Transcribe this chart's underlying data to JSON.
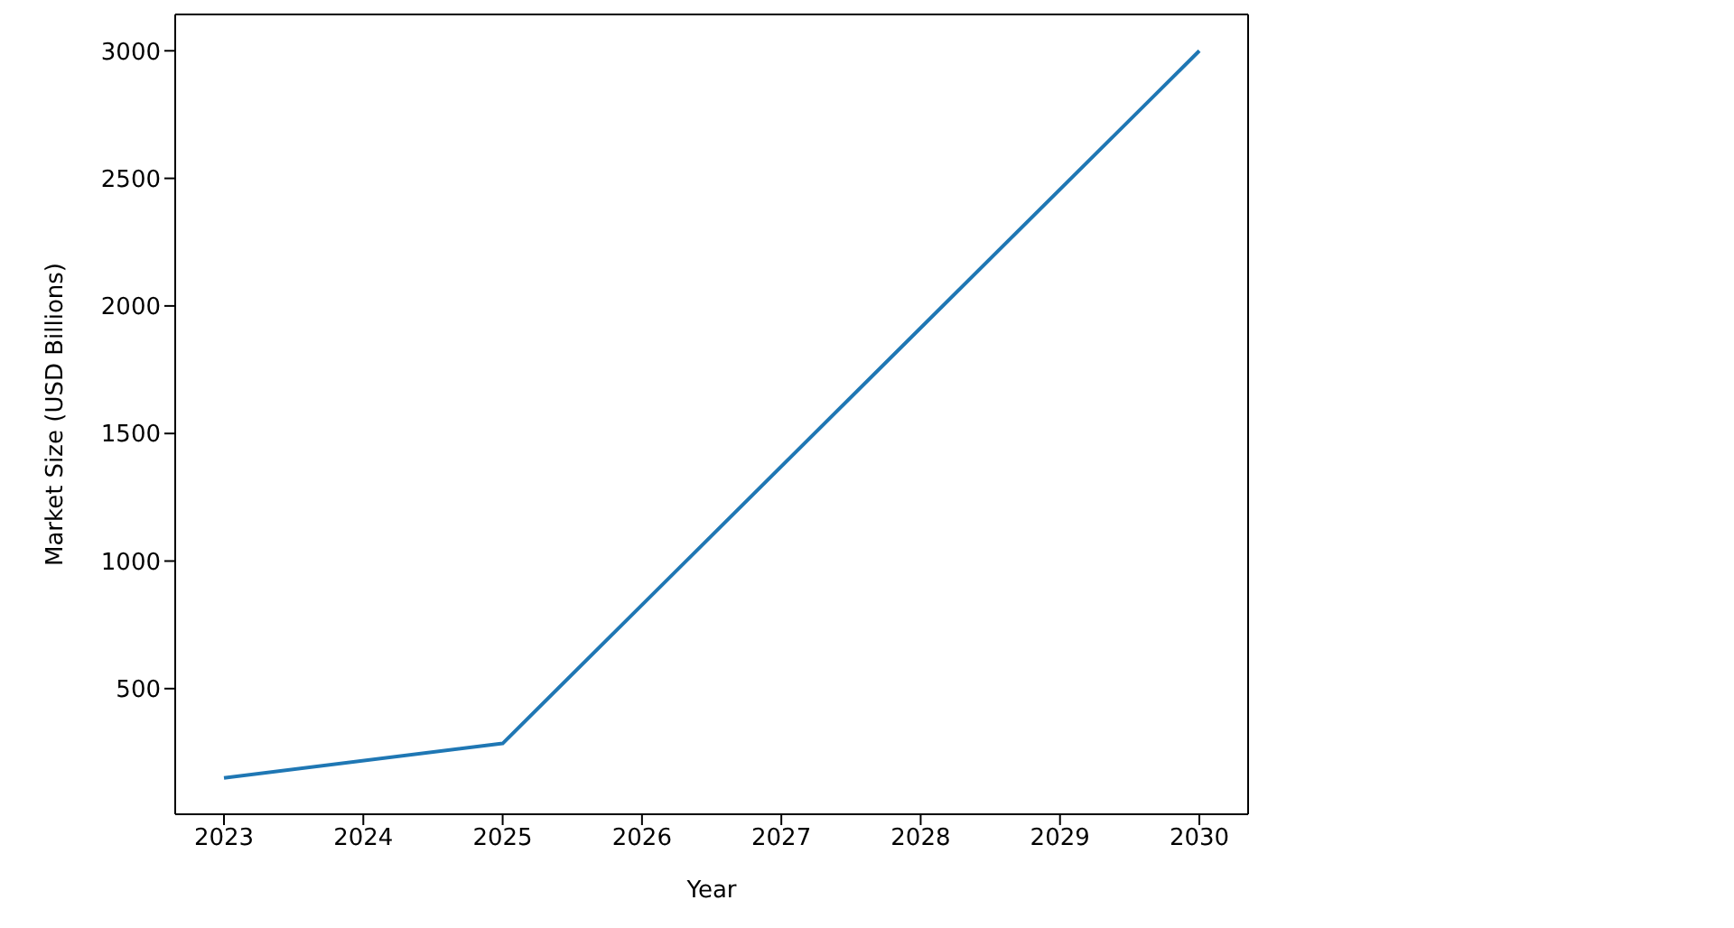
{
  "chart_data": {
    "type": "line",
    "xlabel": "Year",
    "ylabel": "Market Size (USD Billions)",
    "x": [
      2023,
      2025,
      2030
    ],
    "series": [
      {
        "color": "#1f77b4",
        "values": [
          150,
          285,
          3000
        ]
      }
    ],
    "xlim": [
      2022.65,
      2030.35
    ],
    "xticks": [
      2023,
      2024,
      2025,
      2026,
      2027,
      2028,
      2029,
      2030
    ],
    "ylim": [
      7.5,
      3142.5
    ],
    "yticks": [
      500,
      1000,
      1500,
      2000,
      2500,
      3000
    ],
    "grid": false,
    "legend": false,
    "marker": "none",
    "line_style": "solid"
  }
}
